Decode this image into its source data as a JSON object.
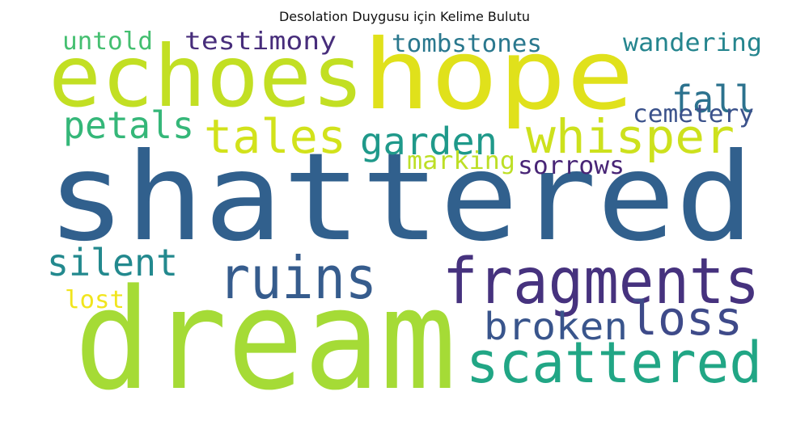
{
  "title": "Desolation Duygusu için Kelime Bulutu",
  "chart_data": {
    "type": "wordcloud",
    "words": [
      {
        "text": "shattered",
        "color": "#31608d"
      },
      {
        "text": "dream",
        "color": "#a5db36"
      },
      {
        "text": "hope",
        "color": "#e0e11b"
      },
      {
        "text": "echoes",
        "color": "#c2df23"
      },
      {
        "text": "fragments",
        "color": "#46327e"
      },
      {
        "text": "scattered",
        "color": "#21a685"
      },
      {
        "text": "ruins",
        "color": "#365c8d"
      },
      {
        "text": "whisper",
        "color": "#cde11d"
      },
      {
        "text": "tales",
        "color": "#d2e21b"
      },
      {
        "text": "loss",
        "color": "#3e4a89"
      },
      {
        "text": "broken",
        "color": "#39558c"
      },
      {
        "text": "garden",
        "color": "#1f998a"
      },
      {
        "text": "fall",
        "color": "#2c728e"
      },
      {
        "text": "silent",
        "color": "#23898e"
      },
      {
        "text": "petals",
        "color": "#35b779"
      },
      {
        "text": "testimony",
        "color": "#472d7b"
      },
      {
        "text": "tombstones",
        "color": "#2a788e"
      },
      {
        "text": "wandering",
        "color": "#25858e"
      },
      {
        "text": "untold",
        "color": "#44bf70"
      },
      {
        "text": "cemetery",
        "color": "#3b528b"
      },
      {
        "text": "marking",
        "color": "#bddf26"
      },
      {
        "text": "sorrows",
        "color": "#482576"
      },
      {
        "text": "lost",
        "color": "#f1e51d"
      }
    ]
  }
}
